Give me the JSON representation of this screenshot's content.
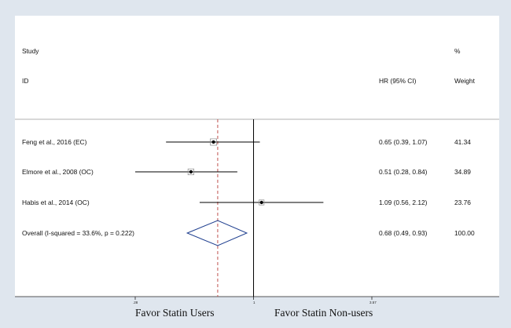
{
  "chart_data": {
    "type": "forest",
    "headers": {
      "study_top": "Study",
      "study_bottom": "ID",
      "effect": "HR (95% CI)",
      "weight_top": "%",
      "weight_bottom": "Weight"
    },
    "studies": [
      {
        "label": "Feng et al., 2016 (EC)",
        "hr": 0.65,
        "lo": 0.39,
        "hi": 1.07,
        "ci_text": "0.65 (0.39, 1.07)",
        "weight": "41.34"
      },
      {
        "label": "Elmore et al., 2008 (OC)",
        "hr": 0.51,
        "lo": 0.28,
        "hi": 0.84,
        "ci_text": "0.51 (0.28, 0.84)",
        "weight": "34.89"
      },
      {
        "label": "Habis et al., 2014 (OC)",
        "hr": 1.09,
        "lo": 0.56,
        "hi": 2.12,
        "ci_text": "1.09 (0.56, 2.12)",
        "weight": "23.76"
      }
    ],
    "overall": {
      "label": "Overall  (I-squared = 33.6%, p = 0.222)",
      "hr": 0.68,
      "lo": 0.49,
      "hi": 0.93,
      "ci_text": "0.68 (0.49, 0.93)",
      "weight": "100.00"
    },
    "x_scale": "log",
    "xlim": [
      0.28,
      3.57
    ],
    "x_ticks": [
      {
        "value": 0.28,
        "label": ".28"
      },
      {
        "value": 1,
        "label": "1"
      },
      {
        "value": 3.57,
        "label": "3.57"
      }
    ],
    "null_line": 1,
    "left_label": "Favor Statin Users",
    "right_label": "Favor Statin Non-users",
    "colors": {
      "overall_line": "#c0504d",
      "diamond": "#1f3f8f",
      "ci": "#000000"
    }
  }
}
